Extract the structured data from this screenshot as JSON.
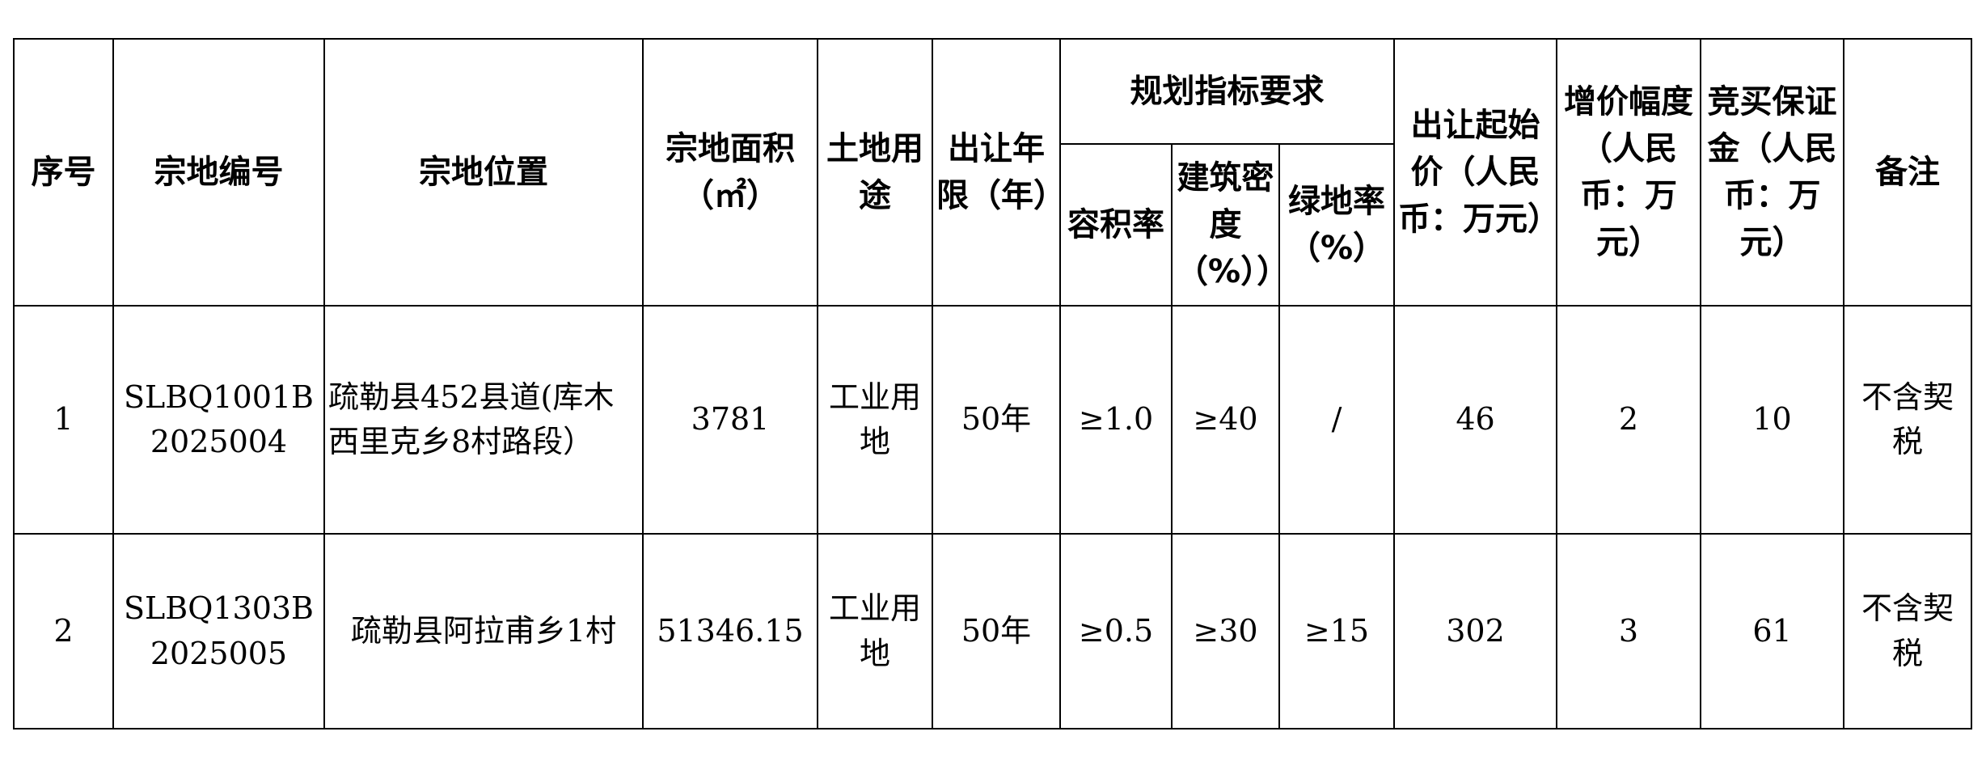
{
  "headers": {
    "seq": "序号",
    "parcel_code": "宗地编号",
    "location": "宗地位置",
    "area": "宗地面积（㎡）",
    "use": "土地用途",
    "term": "出让年限（年）",
    "planning": "规划指标要求",
    "far": "容积率",
    "density": "建筑密度（%））",
    "green": "绿地率（%）",
    "start_price": "出让起始价（人民币：万元）",
    "increment": "增价幅度（人民币：万元）",
    "deposit": "竞买保证金（人民币：万元）",
    "remark": "备注"
  },
  "rows": [
    {
      "seq": "1",
      "parcel_code": "SLBQ1001B2025004",
      "location": "疏勒县452县道(库木西里克乡8村路段）",
      "area": "3781",
      "use": "工业用地",
      "term": "50年",
      "far": "≥1.0",
      "density": "≥40",
      "green": "/",
      "start_price": "46",
      "increment": "2",
      "deposit": "10",
      "remark": "不含契税"
    },
    {
      "seq": "2",
      "parcel_code": "SLBQ1303B2025005",
      "location": "疏勒县阿拉甫乡1村",
      "area": "51346.15",
      "use": "工业用地",
      "term": "50年",
      "far": "≥0.5",
      "density": "≥30",
      "green": "≥15",
      "start_price": "302",
      "increment": "3",
      "deposit": "61",
      "remark": "不含契税"
    }
  ]
}
